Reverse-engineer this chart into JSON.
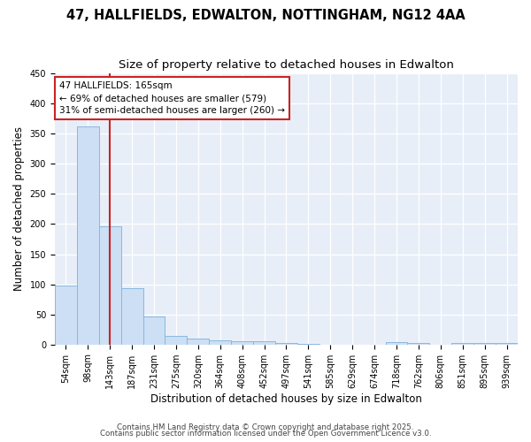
{
  "title": "47, HALLFIELDS, EDWALTON, NOTTINGHAM, NG12 4AA",
  "subtitle": "Size of property relative to detached houses in Edwalton",
  "xlabel": "Distribution of detached houses by size in Edwalton",
  "ylabel": "Number of detached properties",
  "categories": [
    "54sqm",
    "98sqm",
    "143sqm",
    "187sqm",
    "231sqm",
    "275sqm",
    "320sqm",
    "364sqm",
    "408sqm",
    "452sqm",
    "497sqm",
    "541sqm",
    "585sqm",
    "629sqm",
    "674sqm",
    "718sqm",
    "762sqm",
    "806sqm",
    "851sqm",
    "895sqm",
    "939sqm"
  ],
  "values": [
    98,
    362,
    196,
    93,
    46,
    14,
    10,
    7,
    6,
    5,
    2,
    1,
    0,
    0,
    0,
    4,
    3,
    0,
    2,
    2,
    2
  ],
  "bar_color": "#ccdff5",
  "bar_edge_color": "#89b8e0",
  "vline_x_index": 2,
  "vline_color": "#cc2222",
  "ylim": [
    0,
    450
  ],
  "yticks": [
    0,
    50,
    100,
    150,
    200,
    250,
    300,
    350,
    400,
    450
  ],
  "annotation_text": "47 HALLFIELDS: 165sqm\n← 69% of detached houses are smaller (579)\n31% of semi-detached houses are larger (260) →",
  "annotation_box_color": "white",
  "annotation_box_edge_color": "#cc2222",
  "footer_text1": "Contains HM Land Registry data © Crown copyright and database right 2025.",
  "footer_text2": "Contains public sector information licensed under the Open Government Licence v3.0.",
  "background_color": "#ffffff",
  "plot_bg_color": "#e8eef8",
  "grid_color": "#ffffff",
  "title_fontsize": 10.5,
  "subtitle_fontsize": 9.5,
  "tick_fontsize": 7,
  "ylabel_fontsize": 8.5,
  "xlabel_fontsize": 8.5,
  "annotation_fontsize": 7.5,
  "footer_fontsize": 6.2
}
